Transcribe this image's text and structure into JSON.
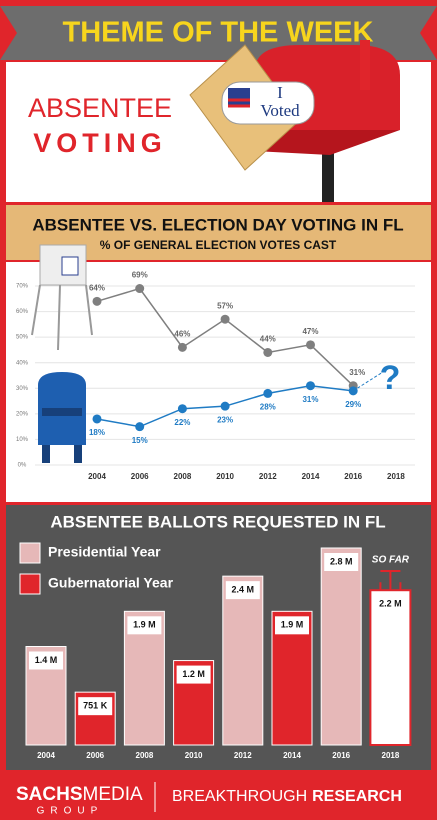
{
  "header": {
    "banner": "THEME OF THE WEEK",
    "title_line1": "ABSENTEE",
    "title_line2": "VOTING",
    "sticker_line1": "I",
    "sticker_line2": "Voted"
  },
  "chart_data": [
    {
      "type": "line",
      "title": "ABSENTEE VS. ELECTION DAY VOTING IN FL",
      "subtitle": "% OF GENERAL ELECTION VOTES CAST",
      "categories": [
        "2004",
        "2006",
        "2008",
        "2010",
        "2012",
        "2014",
        "2016",
        "2018"
      ],
      "series": [
        {
          "color": "#7f7f7f",
          "values": [
            64,
            69,
            46,
            57,
            44,
            47,
            31,
            null
          ],
          "value_labels": [
            "64%",
            "69%",
            "46%",
            "57%",
            "44%",
            "47%",
            "31%",
            null
          ]
        },
        {
          "color": "#1f7bc4",
          "values": [
            18,
            15,
            22,
            23,
            28,
            31,
            29,
            null
          ],
          "value_labels": [
            "18%",
            "15%",
            "22%",
            "23%",
            "28%",
            "31%",
            "29%",
            null
          ]
        }
      ],
      "ylim": [
        0,
        70
      ],
      "yticks": [
        {
          "value": 0,
          "label": "0%"
        },
        {
          "value": 10,
          "label": "10%"
        },
        {
          "value": 20,
          "label": "20%"
        },
        {
          "value": 30,
          "label": "30%"
        },
        {
          "value": 40,
          "label": "40%"
        },
        {
          "value": 50,
          "label": "50%"
        },
        {
          "value": 60,
          "label": "60%"
        },
        {
          "value": 70,
          "label": "70%"
        }
      ],
      "grid": true,
      "annotation": "?"
    },
    {
      "type": "bar",
      "title": "ABSENTEE BALLOTS REQUESTED IN FL",
      "categories": [
        "2004",
        "2006",
        "2008",
        "2010",
        "2012",
        "2014",
        "2016",
        "2018"
      ],
      "values": [
        1400000,
        751000,
        1900000,
        1200000,
        2400000,
        1900000,
        2800000,
        2200000
      ],
      "value_labels": [
        "1.4 M",
        "751 K",
        "1.9 M",
        "1.2 M",
        "2.4 M",
        "1.9 M",
        "2.8 M",
        "2.2 M"
      ],
      "colors": [
        "#e6b8b8",
        "#e0252b",
        "#e6b8b8",
        "#e0252b",
        "#e6b8b8",
        "#e0252b",
        "#e6b8b8",
        "#ffffff"
      ],
      "legend": [
        {
          "name": "Presidential Year",
          "color": "#e6b8b8"
        },
        {
          "name": "Gubernatorial Year",
          "color": "#e0252b"
        }
      ],
      "annotation": "SO FAR"
    }
  ],
  "footer": {
    "brand_bold": "SACHS",
    "brand_light": "MEDIA",
    "brand_sub": "GROUP",
    "tagline_light": "BREAKTHROUGH",
    "tagline_bold": "RESEARCH"
  }
}
